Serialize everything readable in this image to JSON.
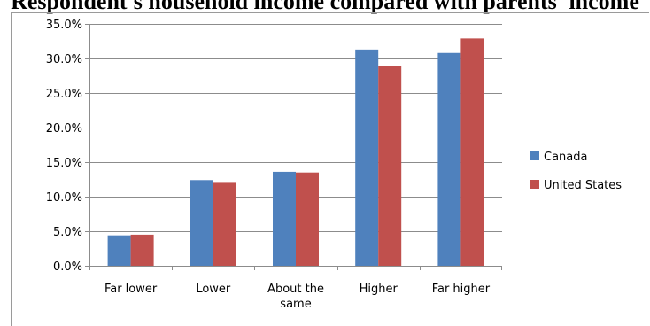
{
  "chart_data": {
    "type": "bar",
    "title": "Respondent's household income compared with parents' income",
    "categories": [
      "Far lower",
      "Lower",
      "About the same",
      "Higher",
      "Far higher"
    ],
    "category_lines": [
      [
        "Far lower"
      ],
      [
        "Lower"
      ],
      [
        "About the",
        "same"
      ],
      [
        "Higher"
      ],
      [
        "Far higher"
      ]
    ],
    "series": [
      {
        "name": "Canada",
        "color": "#4f81bd",
        "values": [
          4.4,
          12.4,
          13.6,
          31.3,
          30.8
        ]
      },
      {
        "name": "United States",
        "color": "#c0504d",
        "values": [
          4.5,
          12.0,
          13.5,
          28.9,
          32.9
        ]
      }
    ],
    "ylim": [
      0,
      35
    ],
    "yticks": [
      "0.0%",
      "5.0%",
      "10.0%",
      "15.0%",
      "20.0%",
      "25.0%",
      "30.0%",
      "35.0%"
    ],
    "ytick_values": [
      0,
      5,
      10,
      15,
      20,
      25,
      30,
      35
    ],
    "grid": true,
    "legend_position": "right",
    "xlabel": "",
    "ylabel": ""
  }
}
